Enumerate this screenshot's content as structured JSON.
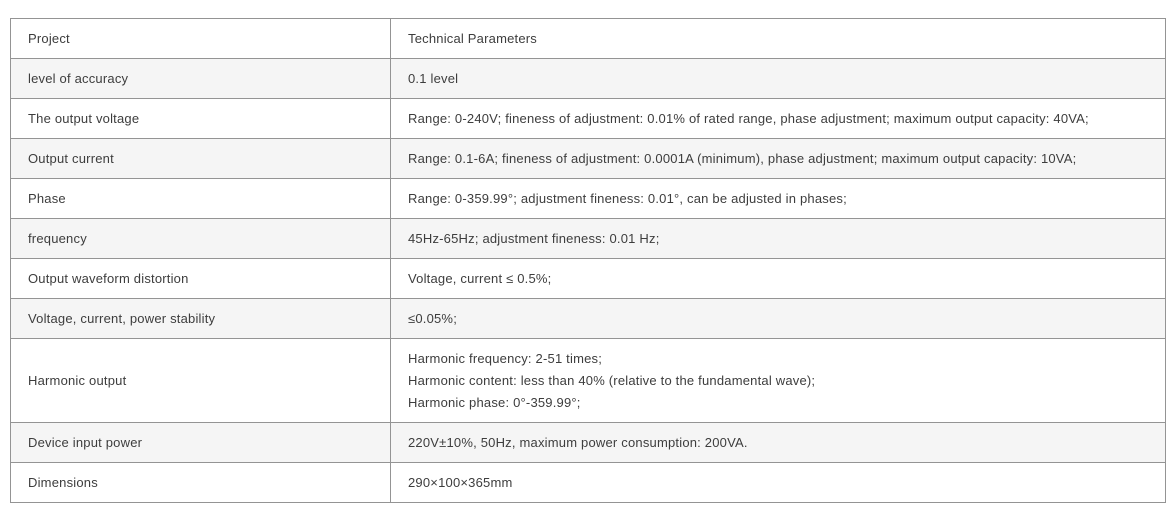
{
  "table": {
    "columns": [
      "Project",
      "Technical Parameters"
    ],
    "rows": [
      {
        "project": "level of accuracy",
        "params": [
          "0.1 level"
        ]
      },
      {
        "project": "The output voltage",
        "params": [
          "Range: 0-240V; fineness of adjustment: 0.01% of rated range, phase adjustment; maximum output capacity: 40VA;"
        ]
      },
      {
        "project": "Output current",
        "params": [
          "Range: 0.1-6A; fineness of adjustment: 0.0001A (minimum), phase adjustment; maximum output capacity: 10VA;"
        ]
      },
      {
        "project": "Phase",
        "params": [
          "Range: 0-359.99°; adjustment fineness: 0.01°, can be adjusted in phases;"
        ]
      },
      {
        "project": "frequency",
        "params": [
          "45Hz-65Hz; adjustment fineness: 0.01 Hz;"
        ]
      },
      {
        "project": "Output waveform distortion",
        "params": [
          "Voltage, current ≤ 0.5%;"
        ]
      },
      {
        "project": "Voltage, current, power stability",
        "params": [
          "≤0.05%;"
        ]
      },
      {
        "project": "Harmonic output",
        "params": [
          "Harmonic frequency: 2-51 times;",
          "Harmonic content: less than 40% (relative to the fundamental wave);",
          "Harmonic phase: 0°-359.99°;"
        ]
      },
      {
        "project": "Device input power",
        "params": [
          "220V±10%, 50Hz, maximum power consumption: 200VA."
        ]
      },
      {
        "project": "Dimensions",
        "params": [
          "290×100×365mm"
        ]
      }
    ],
    "colors": {
      "row_alt_bg": "#f5f5f5",
      "border": "#949494",
      "text": "#3d3d3d"
    }
  }
}
